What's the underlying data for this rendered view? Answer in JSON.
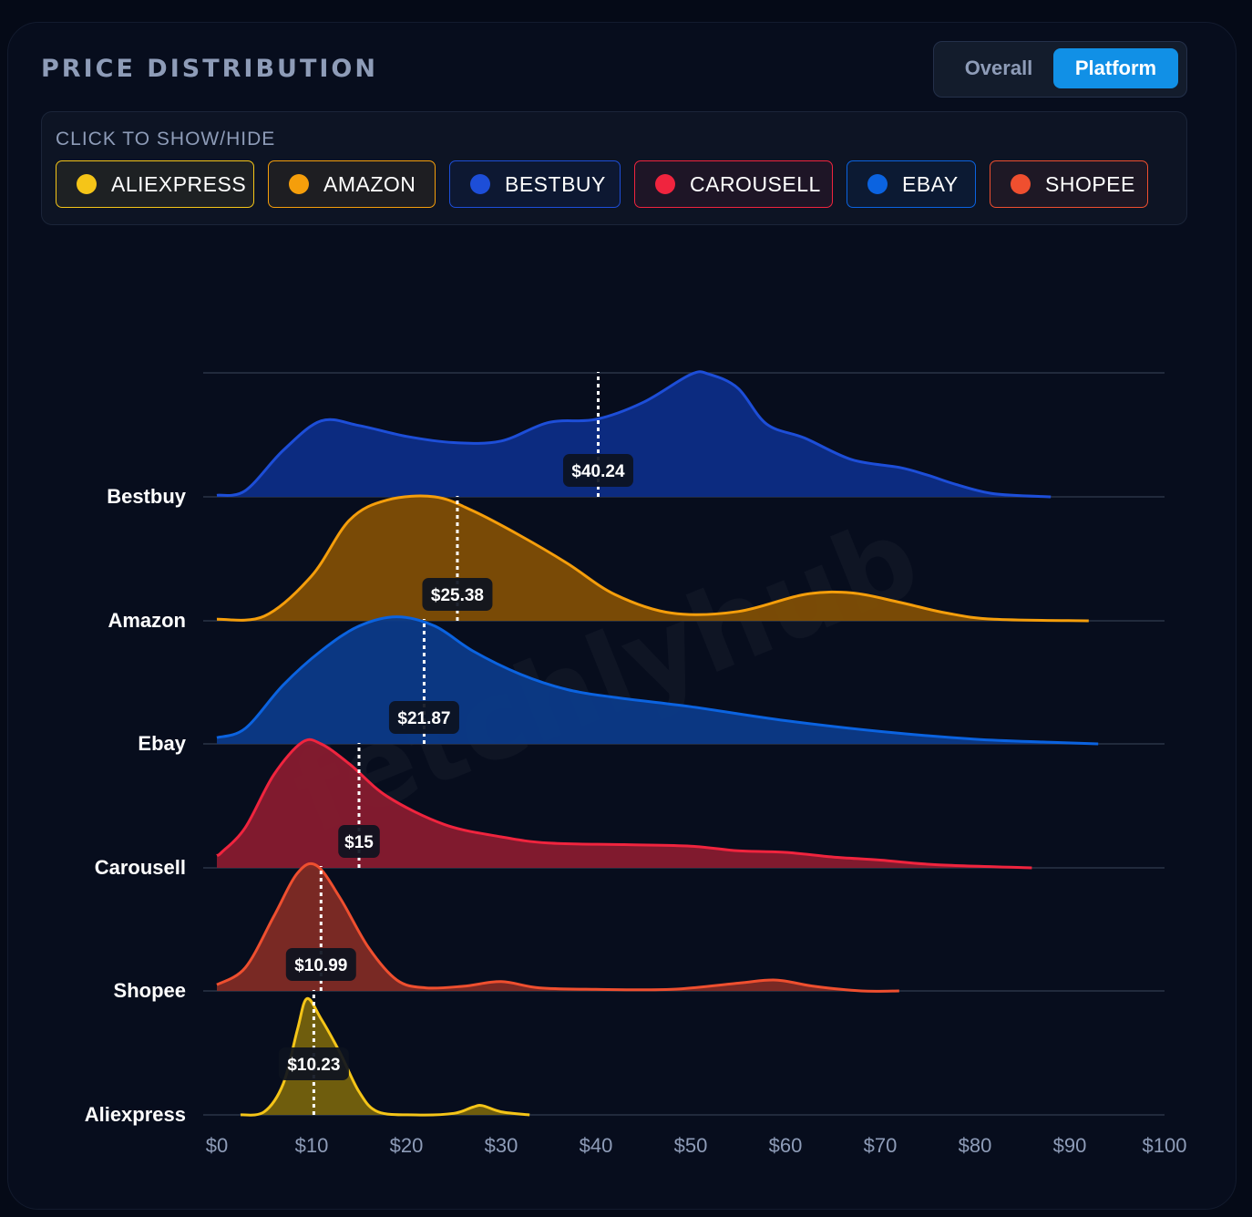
{
  "header": {
    "title": "PRICE DISTRIBUTION"
  },
  "toggle": {
    "overall_label": "Overall",
    "platform_label": "Platform",
    "active": "Platform"
  },
  "legend": {
    "title": "CLICK TO SHOW/HIDE",
    "items": [
      {
        "label": "ALIEXPRESS",
        "color": "#f5c518"
      },
      {
        "label": "AMAZON",
        "color": "#f59e0b"
      },
      {
        "label": "BESTBUY",
        "color": "#1d4ed8"
      },
      {
        "label": "CAROUSELL",
        "color": "#f0243e"
      },
      {
        "label": "EBAY",
        "color": "#0b63e0"
      },
      {
        "label": "SHOPEE",
        "color": "#ef4f2f"
      }
    ]
  },
  "watermark": "fetchlyhub",
  "chart_data": {
    "type": "ridgeline",
    "xlim": [
      0,
      100
    ],
    "x_ticks": [
      "$0",
      "$10",
      "$20",
      "$30",
      "$40",
      "$50",
      "$60",
      "$70",
      "$80",
      "$90",
      "$100"
    ],
    "series": [
      {
        "name": "Bestbuy",
        "color": "#1d4ed8",
        "fill": "#0d2d86",
        "median": 40.24,
        "median_label": "$40.24",
        "density": [
          [
            0,
            0.01
          ],
          [
            3,
            0.04
          ],
          [
            7,
            0.3
          ],
          [
            11,
            0.49
          ],
          [
            15,
            0.46
          ],
          [
            20,
            0.39
          ],
          [
            25,
            0.35
          ],
          [
            30,
            0.36
          ],
          [
            35,
            0.48
          ],
          [
            40,
            0.5
          ],
          [
            45,
            0.61
          ],
          [
            50,
            0.79
          ],
          [
            52,
            0.79
          ],
          [
            55,
            0.7
          ],
          [
            58,
            0.47
          ],
          [
            62,
            0.38
          ],
          [
            67,
            0.24
          ],
          [
            72,
            0.19
          ],
          [
            75,
            0.14
          ],
          [
            78,
            0.08
          ],
          [
            82,
            0.02
          ],
          [
            88,
            0.0
          ]
        ]
      },
      {
        "name": "Amazon",
        "color": "#f59e0b",
        "fill": "#7f4e05",
        "median": 25.38,
        "median_label": "$25.38",
        "density": [
          [
            0,
            0.01
          ],
          [
            5,
            0.03
          ],
          [
            10,
            0.29
          ],
          [
            14,
            0.65
          ],
          [
            18,
            0.78
          ],
          [
            23,
            0.8
          ],
          [
            27,
            0.71
          ],
          [
            32,
            0.55
          ],
          [
            37,
            0.37
          ],
          [
            42,
            0.17
          ],
          [
            48,
            0.05
          ],
          [
            55,
            0.06
          ],
          [
            62,
            0.17
          ],
          [
            67,
            0.18
          ],
          [
            72,
            0.12
          ],
          [
            77,
            0.05
          ],
          [
            82,
            0.01
          ],
          [
            92,
            0.0
          ]
        ]
      },
      {
        "name": "Ebay",
        "color": "#0b63e0",
        "fill": "#0c3a88",
        "median": 21.87,
        "median_label": "$21.87",
        "density": [
          [
            0,
            0.04
          ],
          [
            3,
            0.1
          ],
          [
            7,
            0.38
          ],
          [
            11,
            0.6
          ],
          [
            15,
            0.76
          ],
          [
            19,
            0.82
          ],
          [
            23,
            0.76
          ],
          [
            27,
            0.6
          ],
          [
            32,
            0.45
          ],
          [
            37,
            0.35
          ],
          [
            42,
            0.3
          ],
          [
            50,
            0.24
          ],
          [
            60,
            0.15
          ],
          [
            70,
            0.08
          ],
          [
            80,
            0.03
          ],
          [
            88,
            0.01
          ],
          [
            93,
            0.0
          ]
        ]
      },
      {
        "name": "Carousell",
        "color": "#f0243e",
        "fill": "#871b2f",
        "median": 15,
        "median_label": "$15",
        "density": [
          [
            0,
            0.08
          ],
          [
            0.5,
            0.1
          ],
          [
            3,
            0.26
          ],
          [
            6,
            0.6
          ],
          [
            9,
            0.81
          ],
          [
            11,
            0.8
          ],
          [
            14,
            0.67
          ],
          [
            18,
            0.46
          ],
          [
            24,
            0.28
          ],
          [
            30,
            0.2
          ],
          [
            35,
            0.16
          ],
          [
            43,
            0.15
          ],
          [
            50,
            0.14
          ],
          [
            55,
            0.11
          ],
          [
            60,
            0.1
          ],
          [
            65,
            0.07
          ],
          [
            70,
            0.05
          ],
          [
            76,
            0.02
          ],
          [
            86,
            0.0
          ]
        ]
      },
      {
        "name": "Shopee",
        "color": "#ef4f2f",
        "fill": "#7f2b25",
        "median": 10.99,
        "median_label": "$10.99",
        "density": [
          [
            0,
            0.04
          ],
          [
            3,
            0.15
          ],
          [
            6,
            0.48
          ],
          [
            8.5,
            0.76
          ],
          [
            10.5,
            0.81
          ],
          [
            13,
            0.6
          ],
          [
            16,
            0.28
          ],
          [
            19,
            0.07
          ],
          [
            22,
            0.02
          ],
          [
            26,
            0.03
          ],
          [
            30,
            0.06
          ],
          [
            34,
            0.02
          ],
          [
            40,
            0.01
          ],
          [
            48,
            0.01
          ],
          [
            55,
            0.05
          ],
          [
            59,
            0.07
          ],
          [
            63,
            0.03
          ],
          [
            68,
            0.0
          ],
          [
            72,
            0.0
          ]
        ]
      },
      {
        "name": "Aliexpress",
        "color": "#f5c518",
        "fill": "#75620d",
        "median": 10.23,
        "median_label": "$10.23",
        "density": [
          [
            2.5,
            0.0
          ],
          [
            5,
            0.02
          ],
          [
            7,
            0.2
          ],
          [
            8.5,
            0.55
          ],
          [
            9.5,
            0.75
          ],
          [
            11,
            0.62
          ],
          [
            13,
            0.4
          ],
          [
            15,
            0.15
          ],
          [
            17,
            0.02
          ],
          [
            21,
            0.0
          ],
          [
            25,
            0.01
          ],
          [
            27,
            0.05
          ],
          [
            28,
            0.06
          ],
          [
            30,
            0.02
          ],
          [
            33,
            0.0
          ]
        ]
      }
    ]
  }
}
